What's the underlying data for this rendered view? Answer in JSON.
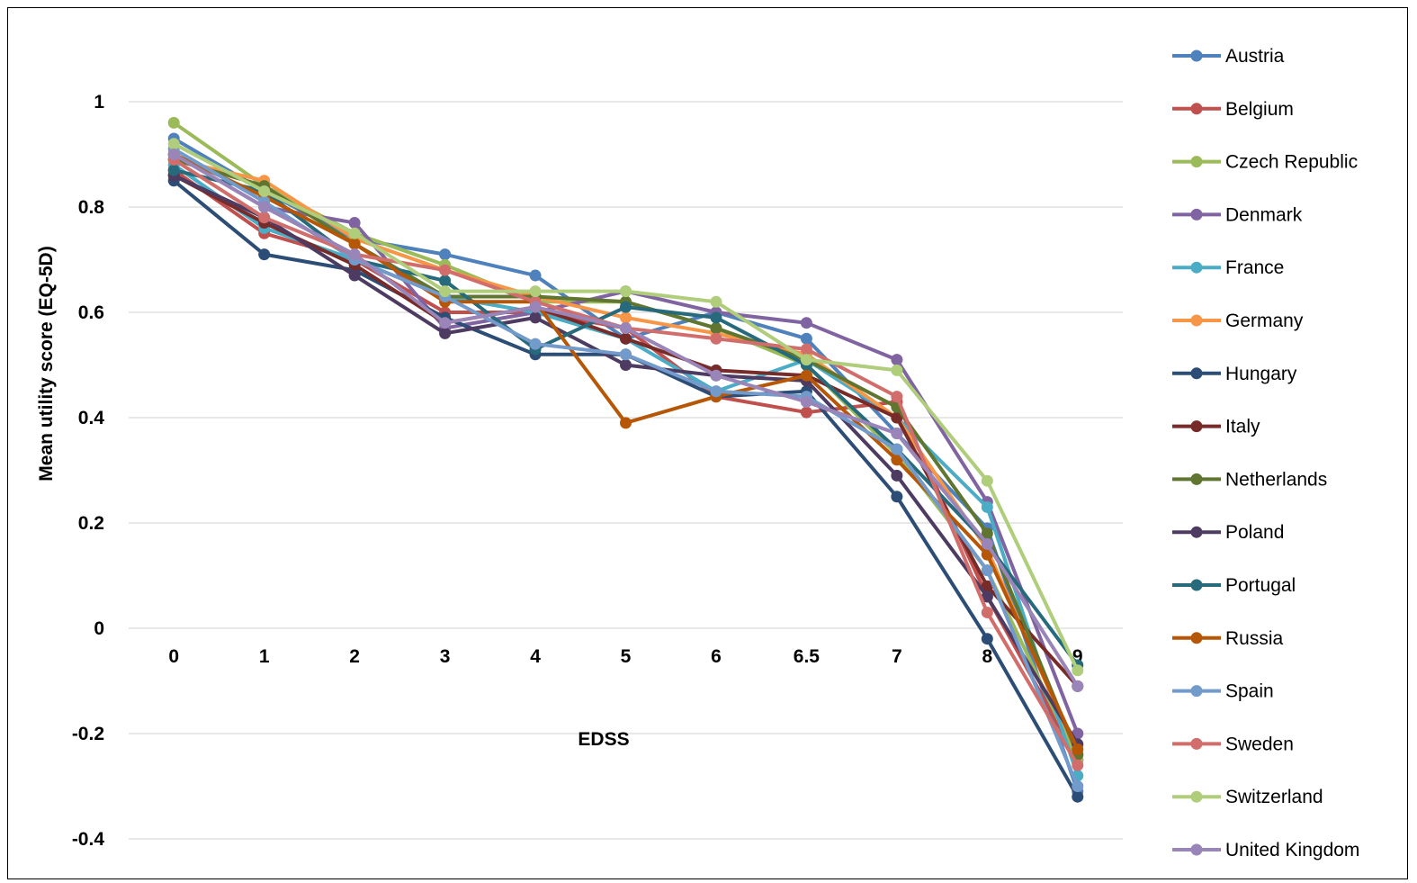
{
  "chart_data": {
    "type": "line",
    "title": "",
    "xlabel": "EDSS",
    "ylabel": "Mean utility score (EQ-5D)",
    "categories": [
      "0",
      "1",
      "2",
      "3",
      "4",
      "5",
      "6",
      "6.5",
      "7",
      "8",
      "9"
    ],
    "ylim": [
      -0.4,
      1
    ],
    "yticks": [
      1,
      0.8,
      0.6,
      0.4,
      0.2,
      0,
      -0.2,
      -0.4
    ],
    "ytick_labels": [
      "1",
      "0.8",
      "0.6",
      "0.4",
      "0.2",
      "0",
      "-0.2",
      "-0.4"
    ],
    "grid": "horizontal",
    "legend_position": "right",
    "series": [
      {
        "name": "Austria",
        "color": "#4F81BD",
        "values": [
          0.93,
          0.83,
          0.74,
          0.71,
          0.67,
          0.55,
          0.6,
          0.55,
          0.37,
          0.19,
          -0.31
        ]
      },
      {
        "name": "Belgium",
        "color": "#C0504D",
        "values": [
          0.87,
          0.75,
          0.7,
          0.6,
          0.6,
          0.57,
          0.44,
          0.41,
          0.43,
          0.06,
          -0.25
        ]
      },
      {
        "name": "Czech Republic",
        "color": "#9BBB59",
        "values": [
          0.96,
          0.84,
          0.75,
          0.69,
          0.62,
          0.62,
          0.57,
          0.5,
          0.33,
          0.11,
          -0.25
        ]
      },
      {
        "name": "Denmark",
        "color": "#8064A2",
        "values": [
          0.9,
          0.8,
          0.77,
          0.57,
          0.6,
          0.64,
          0.6,
          0.58,
          0.51,
          0.24,
          -0.2
        ]
      },
      {
        "name": "France",
        "color": "#4BACC6",
        "values": [
          0.88,
          0.76,
          0.7,
          0.63,
          0.6,
          0.55,
          0.45,
          0.51,
          0.4,
          0.23,
          -0.28
        ]
      },
      {
        "name": "Germany",
        "color": "#F79646",
        "values": [
          0.89,
          0.85,
          0.74,
          0.68,
          0.63,
          0.59,
          0.56,
          0.52,
          0.4,
          0.15,
          -0.24
        ]
      },
      {
        "name": "Hungary",
        "color": "#2C4D75",
        "values": [
          0.85,
          0.71,
          0.68,
          0.59,
          0.52,
          0.52,
          0.44,
          0.45,
          0.25,
          -0.02,
          -0.32
        ]
      },
      {
        "name": "Italy",
        "color": "#772C2A",
        "values": [
          0.86,
          0.77,
          0.69,
          0.58,
          0.61,
          0.55,
          0.49,
          0.48,
          0.4,
          0.08,
          -0.11
        ]
      },
      {
        "name": "Netherlands",
        "color": "#5F7530",
        "values": [
          0.89,
          0.84,
          0.73,
          0.63,
          0.63,
          0.62,
          0.57,
          0.51,
          0.42,
          0.18,
          -0.24
        ]
      },
      {
        "name": "Poland",
        "color": "#4D3B62",
        "values": [
          0.86,
          0.78,
          0.67,
          0.56,
          0.59,
          0.5,
          0.48,
          0.47,
          0.29,
          0.06,
          -0.22
        ]
      },
      {
        "name": "Portugal",
        "color": "#276A7C",
        "values": [
          0.87,
          0.83,
          0.7,
          0.66,
          0.53,
          0.61,
          0.59,
          0.5,
          0.34,
          0.16,
          -0.07
        ]
      },
      {
        "name": "Russia",
        "color": "#B65708",
        "values": [
          0.9,
          0.82,
          0.73,
          0.62,
          0.62,
          0.39,
          0.44,
          0.48,
          0.32,
          0.14,
          -0.23
        ]
      },
      {
        "name": "Spain",
        "color": "#729ACA",
        "values": [
          0.91,
          0.81,
          0.7,
          0.63,
          0.54,
          0.52,
          0.45,
          0.44,
          0.34,
          0.11,
          -0.3
        ]
      },
      {
        "name": "Sweden",
        "color": "#D16E6B",
        "values": [
          0.89,
          0.78,
          0.71,
          0.68,
          0.62,
          0.57,
          0.55,
          0.53,
          0.44,
          0.03,
          -0.26
        ]
      },
      {
        "name": "Switzerland",
        "color": "#AFCD7A",
        "values": [
          0.92,
          0.83,
          0.75,
          0.64,
          0.64,
          0.64,
          0.62,
          0.51,
          0.49,
          0.28,
          -0.08
        ]
      },
      {
        "name": "United Kingdom",
        "color": "#9A85B8",
        "values": [
          0.9,
          0.8,
          0.71,
          0.58,
          0.61,
          0.57,
          0.48,
          0.43,
          0.37,
          0.16,
          -0.11
        ]
      }
    ]
  }
}
